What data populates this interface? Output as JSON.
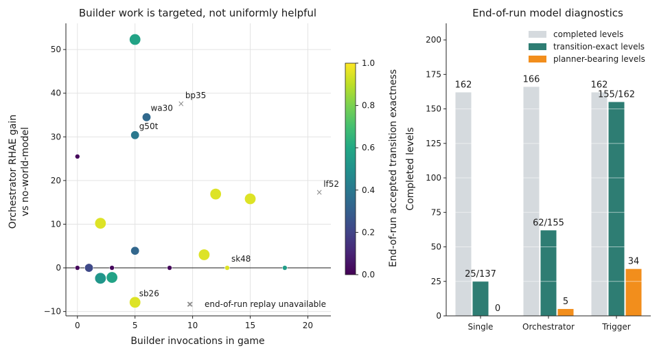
{
  "chart_data": [
    {
      "type": "scatter",
      "title": "Builder work is targeted, not uniformly helpful",
      "xlabel": "Builder invocations in game",
      "ylabel": [
        "Orchestrator RHAE gain",
        "vs no-world-model"
      ],
      "xlim": [
        -1,
        22
      ],
      "ylim": [
        -11,
        56
      ],
      "xticks": [
        0,
        5,
        10,
        15,
        20
      ],
      "yticks": [
        -10,
        0,
        10,
        20,
        30,
        40,
        50
      ],
      "grid": true,
      "zero_line": true,
      "colorbar": {
        "label": "End-of-run accepted transition exactness",
        "colormap": "viridis",
        "range": [
          0.0,
          1.0
        ],
        "ticks": [
          "0.0",
          "0.2",
          "0.4",
          "0.6",
          "0.8",
          "1.0"
        ]
      },
      "points": [
        {
          "x": 5,
          "y": 52.3,
          "c": 0.58,
          "s": "large"
        },
        {
          "x": 6,
          "y": 34.5,
          "c": 0.34,
          "s": "medium",
          "label": "wa30"
        },
        {
          "x": 5,
          "y": 30.4,
          "c": 0.4,
          "s": "medium",
          "label": "g50t"
        },
        {
          "x": 0,
          "y": 25.5,
          "c": 0.02,
          "s": "small"
        },
        {
          "x": 12,
          "y": 16.9,
          "c": 0.95,
          "s": "large"
        },
        {
          "x": 15,
          "y": 15.8,
          "c": 0.95,
          "s": "large"
        },
        {
          "x": 2,
          "y": 10.2,
          "c": 0.95,
          "s": "large"
        },
        {
          "x": 5,
          "y": 3.9,
          "c": 0.33,
          "s": "medium"
        },
        {
          "x": 11,
          "y": 3.0,
          "c": 0.95,
          "s": "large"
        },
        {
          "x": 0,
          "y": 0,
          "c": 0.02,
          "s": "small"
        },
        {
          "x": 1,
          "y": 0,
          "c": 0.22,
          "s": "medium"
        },
        {
          "x": 3,
          "y": 0,
          "c": 0.02,
          "s": "small"
        },
        {
          "x": 8,
          "y": 0,
          "c": 0.02,
          "s": "small"
        },
        {
          "x": 13,
          "y": 0,
          "c": 0.95,
          "s": "small",
          "label": "sk48"
        },
        {
          "x": 18,
          "y": 0,
          "c": 0.55,
          "s": "small"
        },
        {
          "x": 2,
          "y": -2.4,
          "c": 0.52,
          "s": "large"
        },
        {
          "x": 3,
          "y": -2.2,
          "c": 0.58,
          "s": "large"
        },
        {
          "x": 5,
          "y": -7.9,
          "c": 0.95,
          "s": "large",
          "label": "sb26"
        }
      ],
      "unavailable_points": [
        {
          "x": 9,
          "y": 37.6,
          "label": "bp35"
        },
        {
          "x": 21,
          "y": 17.3,
          "label": "lf52"
        },
        {
          "x": 9.8,
          "y": -8.3
        }
      ],
      "legend": {
        "marker": "×",
        "label": "end-of-run replay unavailable",
        "placement": "lower-right"
      }
    },
    {
      "type": "bar",
      "title": "End-of-run model diagnostics",
      "ylabel": "Completed levels",
      "ylim": [
        0,
        212
      ],
      "yticks": [
        0,
        25,
        50,
        75,
        100,
        125,
        150,
        175,
        200
      ],
      "grid": true,
      "legend_placement": "top-right",
      "categories": [
        "Single",
        "Orchestrator",
        "Trigger"
      ],
      "series": [
        {
          "name": "completed levels",
          "color": "#d5dade",
          "values": [
            162,
            166,
            162
          ],
          "labels": [
            "162",
            "166",
            "162"
          ]
        },
        {
          "name": "transition-exact levels",
          "color": "#2e7d73",
          "values": [
            25,
            62,
            155
          ],
          "labels": [
            "25/137",
            "62/155",
            "155/162"
          ]
        },
        {
          "name": "planner-bearing levels",
          "color": "#f28e1c",
          "values": [
            0,
            5,
            34
          ],
          "labels": [
            "0",
            "5",
            "34"
          ]
        }
      ]
    }
  ]
}
